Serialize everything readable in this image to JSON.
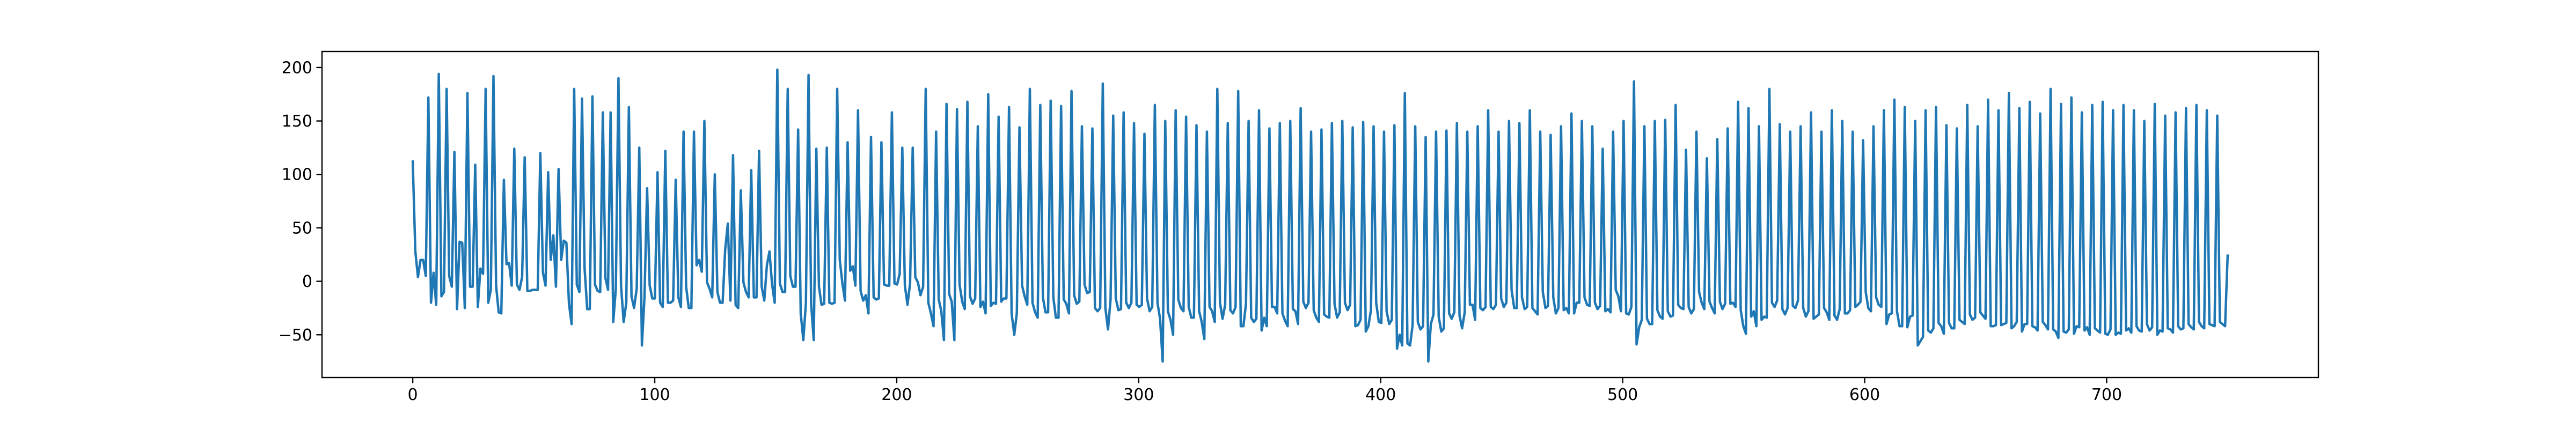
{
  "chart_data": {
    "type": "line",
    "title": "",
    "xlabel": "",
    "ylabel": "",
    "xlim": [
      -37.5,
      787.5
    ],
    "ylim": [
      -90,
      215
    ],
    "xticks": [
      0,
      100,
      200,
      300,
      400,
      500,
      600,
      700
    ],
    "yticks": [
      -50,
      0,
      50,
      100,
      150,
      200
    ],
    "xtick_labels": [
      "0",
      "100",
      "200",
      "300",
      "400",
      "500",
      "600",
      "700"
    ],
    "ytick_labels": [
      "−50",
      "0",
      "50",
      "100",
      "150",
      "200"
    ],
    "grid": false,
    "legend": "none",
    "series": [
      {
        "color": "#1f77b4",
        "x_start": 0,
        "x_step": 1,
        "values": [
          112,
          28,
          4,
          20,
          20,
          5,
          172,
          -20,
          8,
          -22,
          194,
          -14,
          -10,
          180,
          5,
          -5,
          121,
          -26,
          37,
          36,
          -25,
          176,
          -5,
          -5,
          109,
          -24,
          12,
          7,
          180,
          -20,
          -8,
          192,
          -4,
          -29,
          -30,
          95,
          16,
          17,
          -4,
          124,
          -3,
          -8,
          4,
          116,
          -9,
          -9,
          -8,
          -8,
          -8,
          120,
          8,
          -4,
          102,
          20,
          43,
          -5,
          105,
          20,
          38,
          36,
          -21,
          -40,
          180,
          -3,
          -10,
          171,
          12,
          -26,
          -26,
          173,
          -3,
          -9,
          -10,
          158,
          3,
          -8,
          158,
          -38,
          -7,
          190,
          -4,
          -38,
          -20,
          163,
          -14,
          -25,
          -7,
          125,
          -60,
          -15,
          87,
          -4,
          -16,
          -16,
          102,
          -20,
          -24,
          122,
          -20,
          -20,
          -18,
          95,
          -15,
          -24,
          140,
          -5,
          -25,
          -25,
          140,
          15,
          20,
          9,
          150,
          -1,
          -7,
          -15,
          100,
          -10,
          -20,
          -20,
          30,
          54,
          -18,
          118,
          -22,
          -25,
          85,
          -1,
          -10,
          -15,
          104,
          -15,
          -15,
          122,
          -5,
          -18,
          15,
          28,
          -3,
          -20,
          198,
          -2,
          -10,
          -10,
          180,
          5,
          -5,
          -5,
          142,
          -30,
          -55,
          -20,
          193,
          -21,
          -55,
          124,
          -5,
          -22,
          -21,
          125,
          -20,
          -21,
          -20,
          180,
          20,
          -2,
          -18,
          130,
          10,
          14,
          -4,
          160,
          -9,
          -18,
          -13,
          -30,
          135,
          -15,
          -17,
          -16,
          130,
          -3,
          -4,
          -4,
          158,
          -2,
          -3,
          7,
          125,
          -4,
          -22,
          -2,
          125,
          4,
          -1,
          -13,
          -5,
          180,
          -20,
          -30,
          -42,
          140,
          -17,
          -28,
          -55,
          166,
          -12,
          -19,
          -55,
          161,
          -3,
          -19,
          -26,
          168,
          -14,
          -21,
          -16,
          145,
          -24,
          -19,
          -30,
          175,
          -23,
          -20,
          -21,
          154,
          -19,
          -16,
          -16,
          163,
          -30,
          -50,
          -30,
          144,
          -4,
          -14,
          -22,
          180,
          -20,
          -29,
          -34,
          165,
          -15,
          -29,
          -29,
          169,
          -15,
          -34,
          -34,
          164,
          -17,
          -21,
          -30,
          178,
          -13,
          -21,
          -19,
          145,
          -3,
          -11,
          -10,
          143,
          -25,
          -28,
          -25,
          185,
          -25,
          -45,
          -17,
          155,
          -16,
          -27,
          -26,
          158,
          -20,
          -25,
          -20,
          148,
          -22,
          -24,
          -22,
          138,
          -16,
          -28,
          -24,
          165,
          -20,
          -35,
          -75,
          150,
          -28,
          -36,
          -50,
          160,
          -17,
          -25,
          -28,
          154,
          -24,
          -34,
          -34,
          146,
          -28,
          -38,
          -54,
          140,
          -24,
          -28,
          -38,
          180,
          -20,
          -35,
          -22,
          148,
          -27,
          -30,
          -24,
          178,
          -42,
          -42,
          -21,
          150,
          -34,
          -38,
          -35,
          160,
          -46,
          -34,
          -42,
          143,
          -24,
          -24,
          -30,
          148,
          -30,
          -37,
          -42,
          150,
          -26,
          -28,
          -40,
          162,
          -19,
          -25,
          -20,
          140,
          -27,
          -34,
          -38,
          142,
          -31,
          -33,
          -34,
          148,
          -21,
          -34,
          -29,
          150,
          -20,
          -27,
          -22,
          144,
          -42,
          -41,
          -36,
          149,
          -47,
          -42,
          -27,
          145,
          -20,
          -38,
          -39,
          140,
          -28,
          -40,
          -36,
          146,
          -63,
          -50,
          -60,
          176,
          -58,
          -60,
          -41,
          145,
          -38,
          -45,
          -42,
          135,
          -75,
          -40,
          -31,
          140,
          -33,
          -47,
          -44,
          141,
          -30,
          -35,
          -29,
          148,
          -32,
          -44,
          -29,
          140,
          -22,
          -22,
          -36,
          145,
          -25,
          -27,
          -24,
          160,
          -24,
          -26,
          -22,
          140,
          -16,
          -24,
          -20,
          150,
          -8,
          -25,
          -25,
          148,
          -15,
          -26,
          -24,
          160,
          -25,
          -28,
          -31,
          140,
          -10,
          -25,
          -23,
          137,
          -15,
          -30,
          -25,
          145,
          -27,
          -25,
          -30,
          157,
          -30,
          -20,
          -20,
          150,
          -15,
          -22,
          -23,
          145,
          -20,
          -26,
          -23,
          124,
          -28,
          -26,
          -29,
          140,
          -8,
          -14,
          -28,
          150,
          -30,
          -31,
          -24,
          187,
          -59,
          -43,
          -36,
          145,
          -35,
          -40,
          -40,
          150,
          -27,
          -33,
          -35,
          151,
          -28,
          -33,
          -32,
          165,
          -22,
          -25,
          -26,
          123,
          -24,
          -30,
          -26,
          140,
          -10,
          -20,
          -26,
          115,
          -19,
          -25,
          -30,
          133,
          -19,
          -26,
          -21,
          143,
          -21,
          -20,
          -24,
          168,
          -27,
          -42,
          -49,
          162,
          -33,
          -28,
          -42,
          145,
          -36,
          -33,
          -34,
          180,
          -20,
          -24,
          -18,
          147,
          -26,
          -31,
          -25,
          140,
          -23,
          -25,
          -18,
          145,
          -25,
          -33,
          -28,
          158,
          -35,
          -33,
          -31,
          140,
          -25,
          -29,
          -36,
          160,
          -32,
          -36,
          -26,
          150,
          -30,
          -30,
          -27,
          140,
          -24,
          -22,
          -19,
          132,
          -10,
          -25,
          -28,
          145,
          -15,
          -22,
          -24,
          160,
          -40,
          -31,
          -30,
          170,
          -28,
          -42,
          -42,
          163,
          -43,
          -33,
          -32,
          150,
          -60,
          -56,
          -52,
          160,
          -46,
          -48,
          -44,
          163,
          -39,
          -42,
          -49,
          146,
          -39,
          -44,
          -44,
          143,
          -36,
          -38,
          -40,
          165,
          -31,
          -36,
          -34,
          145,
          -29,
          -32,
          -35,
          170,
          -42,
          -42,
          -41,
          160,
          -41,
          -40,
          -39,
          176,
          -44,
          -42,
          -38,
          162,
          -47,
          -40,
          -40,
          168,
          -42,
          -43,
          -46,
          157,
          -38,
          -41,
          -45,
          180,
          -45,
          -47,
          -53,
          166,
          -47,
          -48,
          -45,
          172,
          -49,
          -42,
          -43,
          158,
          -46,
          -43,
          -50,
          165,
          -44,
          -46,
          -48,
          168,
          -49,
          -50,
          -45,
          160,
          -50,
          -48,
          -49,
          165,
          -46,
          -44,
          -48,
          160,
          -42,
          -46,
          -47,
          150,
          -40,
          -46,
          -43,
          166,
          -50,
          -46,
          -47,
          155,
          -44,
          -45,
          -48,
          158,
          -42,
          -45,
          -44,
          162,
          -40,
          -43,
          -45,
          165,
          -38,
          -42,
          -44,
          160,
          -40,
          -41,
          -42,
          155,
          -38,
          -40,
          -42,
          24
        ]
      }
    ]
  }
}
